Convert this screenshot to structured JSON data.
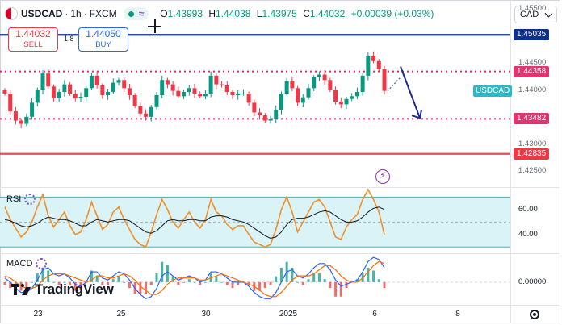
{
  "header": {
    "symbol": "USDCAD",
    "interval": "1h",
    "exchange": "FXCM",
    "separator": "·",
    "o_label": "O",
    "o": "1.43993",
    "h_label": "H",
    "h": "1.44038",
    "l_label": "L",
    "l": "1.43975",
    "c_label": "C",
    "c": "1.44032",
    "change": "+0.00039 (+0.03%)",
    "wave_icon": "≈"
  },
  "trade": {
    "sell_price": "1.44032",
    "sell_label": "SELL",
    "spread": "1.8",
    "buy_price": "1.44050",
    "buy_label": "BUY"
  },
  "currency_selector": "CAD",
  "colors": {
    "up": "#089981",
    "down": "#f23645",
    "line_blue": "#0d2f8f",
    "dotted_red": "#e0287a",
    "red_line": "#e05252",
    "rsi_orange": "#f0902b",
    "rsi_band": "#d9f3f6",
    "macd_blue": "#2962ff",
    "macd_orange": "#ff6d00",
    "usdcad_label": "#2bb8c9"
  },
  "chart_data": [
    {
      "type": "candlestick",
      "symbol": "USDCAD",
      "timeframe": "1h",
      "y_ticks": [
        "1.45500",
        "1.44500",
        "1.44000",
        "1.43000",
        "1.42500"
      ],
      "levels": [
        {
          "price": 1.45035,
          "label": "1.45035",
          "style": "solid",
          "color": "#0d2f8f"
        },
        {
          "price": 1.44358,
          "label": "1.44358",
          "style": "dotted",
          "color": "#e0287a"
        },
        {
          "price": 1.43482,
          "label": "1.43482",
          "style": "dotted",
          "color": "#e0287a"
        },
        {
          "price": 1.42835,
          "label": "1.42835",
          "style": "solid",
          "color": "#e05252"
        }
      ],
      "current_price_label": "USDCAD",
      "ylim": [
        1.4222,
        1.4568
      ],
      "x_labels": [
        "23",
        "25",
        "30",
        "2025",
        "6",
        "8"
      ],
      "close_path": [
        1.4395,
        1.4362,
        1.4345,
        1.4339,
        1.4352,
        1.4378,
        1.4402,
        1.4432,
        1.4408,
        1.4386,
        1.4398,
        1.4412,
        1.4395,
        1.4386,
        1.4389,
        1.4405,
        1.4428,
        1.441,
        1.4392,
        1.4398,
        1.4415,
        1.442,
        1.4405,
        1.4392,
        1.4372,
        1.4358,
        1.4352,
        1.437,
        1.4392,
        1.442,
        1.4412,
        1.44,
        1.439,
        1.4398,
        1.4405,
        1.4395,
        1.439,
        1.4395,
        1.4428,
        1.4412,
        1.441,
        1.4398,
        1.4392,
        1.4395,
        1.4395,
        1.4378,
        1.436,
        1.4355,
        1.4345,
        1.4348,
        1.4365,
        1.4395,
        1.4418,
        1.4405,
        1.4378,
        1.4388,
        1.4405,
        1.4425,
        1.443,
        1.442,
        1.4402,
        1.438,
        1.4375,
        1.4385,
        1.439,
        1.4398,
        1.4428,
        1.4465,
        1.4455,
        1.444,
        1.44
      ],
      "projection": [
        [
          1.44,
          1.4425
        ],
        [
          1.4445,
          1.435
        ]
      ]
    },
    {
      "type": "line",
      "title": "RSI",
      "y_ticks": [
        "60.00",
        "40.00"
      ],
      "band": [
        30,
        70
      ],
      "ylim": [
        25,
        78
      ],
      "series": [
        {
          "values": [
            62,
            52,
            45,
            38,
            42,
            50,
            62,
            72,
            55,
            46,
            52,
            58,
            47,
            40,
            42,
            52,
            66,
            55,
            44,
            48,
            58,
            62,
            52,
            44,
            36,
            32,
            30,
            42,
            56,
            68,
            60,
            50,
            45,
            52,
            58,
            50,
            45,
            52,
            68,
            58,
            55,
            48,
            44,
            47,
            47,
            40,
            34,
            32,
            30,
            32,
            44,
            60,
            70,
            58,
            42,
            50,
            58,
            66,
            68,
            62,
            50,
            38,
            36,
            46,
            52,
            56,
            68,
            76,
            68,
            58,
            40
          ]
        },
        {
          "values": [
            52,
            51,
            49,
            47,
            46,
            47,
            49,
            52,
            54,
            53,
            52,
            52,
            51,
            49,
            47,
            47,
            50,
            52,
            51,
            50,
            51,
            52,
            52,
            51,
            48,
            45,
            42,
            41,
            43,
            47,
            51,
            52,
            51,
            51,
            52,
            52,
            51,
            51,
            54,
            55,
            55,
            54,
            52,
            51,
            50,
            48,
            45,
            42,
            39,
            37,
            38,
            42,
            48,
            52,
            53,
            53,
            54,
            56,
            58,
            59,
            58,
            55,
            52,
            50,
            50,
            51,
            54,
            58,
            61,
            62,
            60
          ]
        }
      ]
    },
    {
      "type": "line",
      "title": "MACD",
      "y_ticks": [
        "0.00000"
      ],
      "ylim": [
        -1.1,
        1.4
      ],
      "series": [
        {
          "values": [
            0.2,
            0.0,
            -0.3,
            -0.5,
            -0.5,
            -0.3,
            0.1,
            0.6,
            0.7,
            0.4,
            0.3,
            0.4,
            0.2,
            -0.1,
            -0.2,
            0.0,
            0.5,
            0.5,
            0.2,
            0.1,
            0.3,
            0.5,
            0.4,
            0.1,
            -0.3,
            -0.6,
            -0.8,
            -0.7,
            -0.3,
            0.3,
            0.5,
            0.3,
            0.1,
            0.2,
            0.3,
            0.2,
            0.0,
            0.1,
            0.5,
            0.5,
            0.4,
            0.2,
            0.0,
            0.0,
            0.0,
            -0.2,
            -0.5,
            -0.7,
            -0.8,
            -0.8,
            -0.5,
            0.0,
            0.5,
            0.6,
            0.3,
            0.2,
            0.4,
            0.7,
            0.9,
            0.9,
            0.6,
            0.1,
            -0.2,
            -0.1,
            0.0,
            0.1,
            0.5,
            1.0,
            1.2,
            1.1,
            0.7
          ]
        },
        {
          "values": [
            0.3,
            0.2,
            0.0,
            -0.2,
            -0.3,
            -0.3,
            -0.2,
            0.1,
            0.3,
            0.4,
            0.4,
            0.4,
            0.3,
            0.2,
            0.1,
            0.0,
            0.1,
            0.3,
            0.3,
            0.2,
            0.2,
            0.3,
            0.4,
            0.3,
            0.1,
            -0.2,
            -0.4,
            -0.6,
            -0.6,
            -0.4,
            -0.1,
            0.1,
            0.2,
            0.2,
            0.2,
            0.2,
            0.1,
            0.1,
            0.2,
            0.3,
            0.4,
            0.3,
            0.2,
            0.1,
            0.0,
            -0.1,
            -0.2,
            -0.4,
            -0.6,
            -0.7,
            -0.7,
            -0.5,
            -0.2,
            0.1,
            0.3,
            0.3,
            0.3,
            0.4,
            0.6,
            0.8,
            0.8,
            0.6,
            0.3,
            0.1,
            0.0,
            0.0,
            0.2,
            0.5,
            0.8,
            1.0,
            0.9
          ]
        }
      ]
    }
  ],
  "branding": {
    "text": "TradingView"
  }
}
